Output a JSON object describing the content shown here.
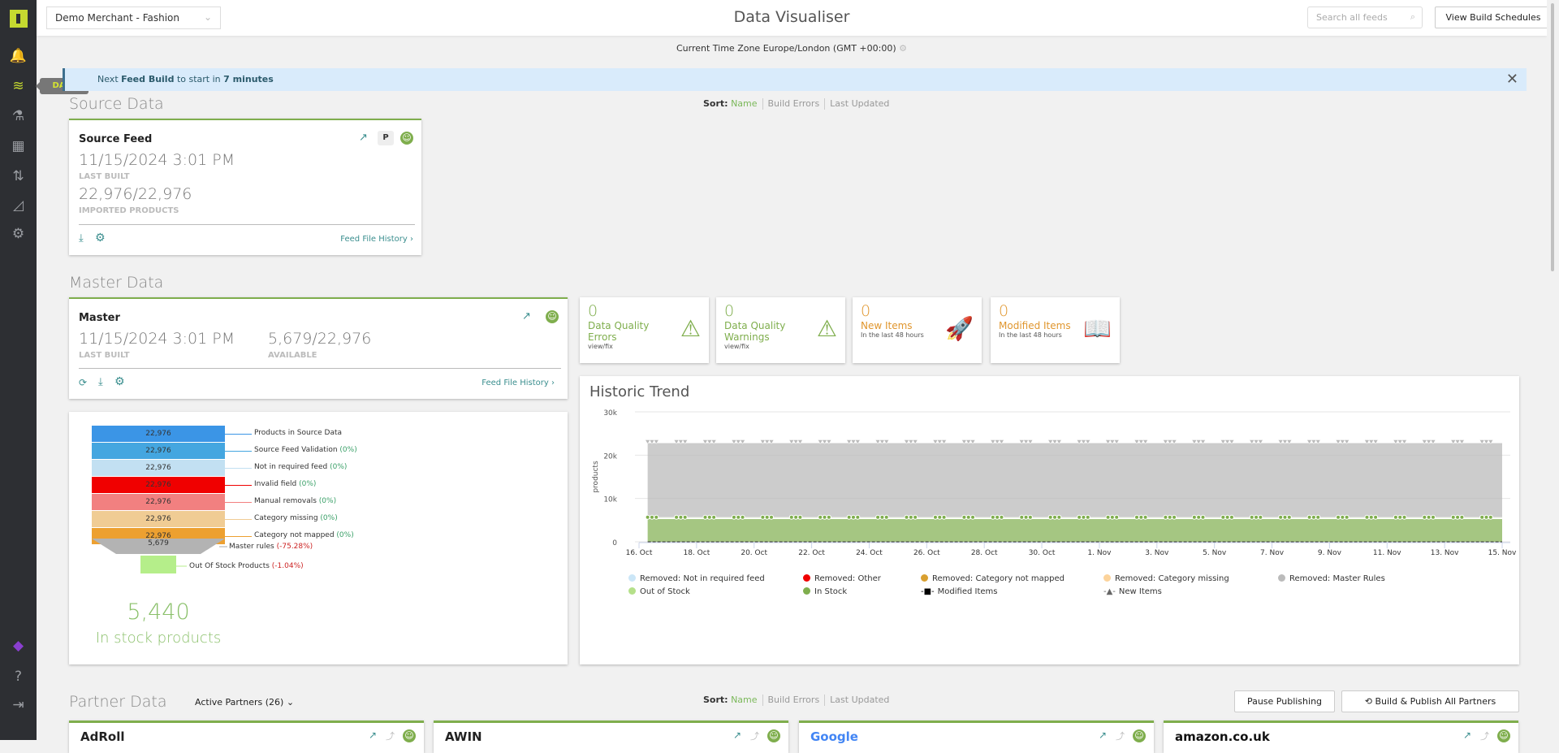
{
  "sidebar": {
    "tooltip": "DATA",
    "items": [
      {
        "icon": "bell-icon",
        "g": "🔔"
      },
      {
        "icon": "layers-icon",
        "g": "≋"
      },
      {
        "icon": "flask-icon",
        "g": "⚗"
      },
      {
        "icon": "store-icon",
        "g": "▦"
      },
      {
        "icon": "transfer-arrows-icon",
        "g": "⇅"
      },
      {
        "icon": "area-chart-icon",
        "g": "◿"
      },
      {
        "icon": "gear-icon",
        "g": "⚙"
      }
    ],
    "bottom": [
      {
        "icon": "cube-icon",
        "g": "◆"
      },
      {
        "icon": "help-icon",
        "g": "?"
      },
      {
        "icon": "logout-icon",
        "g": "⇥"
      }
    ]
  },
  "header": {
    "merchant": "Demo Merchant - Fashion",
    "title": "Data Visualiser",
    "search_placeholder": "Search all feeds",
    "view_schedules": "View Build Schedules"
  },
  "timezone": "Current Time Zone Europe/London (GMT +00:00)",
  "banner": {
    "pre": "Next ",
    "bold1": "Feed Build",
    "mid": " to start in ",
    "bold2": "7 minutes"
  },
  "sort": {
    "label": "Sort:",
    "options": [
      "Name",
      "Build Errors",
      "Last Updated"
    ]
  },
  "source": {
    "heading": "Source Data",
    "card": {
      "name": "Source Feed",
      "last_built": "11/15/2024 3:01 PM",
      "last_built_label": "LAST BUILT",
      "imported": "22,976/22,976",
      "imported_label": "IMPORTED PRODUCTS",
      "badge": "P",
      "history": "Feed File History"
    }
  },
  "master": {
    "heading": "Master Data",
    "card": {
      "name": "Master",
      "last_built": "11/15/2024 3:01 PM",
      "last_built_label": "LAST BUILT",
      "available": "5,679/22,976",
      "available_label": "AVAILABLE",
      "history": "Feed File History"
    }
  },
  "stats": [
    {
      "value": "0",
      "title": "Data Quality Errors",
      "sub": "view/fix",
      "color": "#7fae4d"
    },
    {
      "value": "0",
      "title": "Data Quality Warnings",
      "sub": "view/fix",
      "color": "#7fae4d"
    },
    {
      "value": "0",
      "title": "New Items",
      "sub": "In the last 48 hours",
      "color": "#e0962e"
    },
    {
      "value": "0",
      "title": "Modified Items",
      "sub": "In the last 48 hours",
      "color": "#e0962e"
    }
  ],
  "funnel": {
    "rows": [
      {
        "value": "22,976",
        "label": "Products in Source Data",
        "pct": "",
        "color": "#3b95e6"
      },
      {
        "value": "22,976",
        "label": "Source Feed Validation",
        "pct": "(0%)",
        "color": "#44a6e0"
      },
      {
        "value": "22,976",
        "label": "Not in required feed",
        "pct": "(0%)",
        "color": "#c2e0f2"
      },
      {
        "value": "22,976",
        "label": "Invalid field",
        "pct": "(0%)",
        "color": "#f00000"
      },
      {
        "value": "22,976",
        "label": "Manual removals",
        "pct": "(0%)",
        "color": "#f28080"
      },
      {
        "value": "22,976",
        "label": "Category missing",
        "pct": "(0%)",
        "color": "#f0cc94"
      },
      {
        "value": "22,976",
        "label": "Category not mapped",
        "pct": "(0%)",
        "color": "#eda030"
      }
    ],
    "master_rules": {
      "value": "5,679",
      "label": "Master rules",
      "pct": "(-75.28%)"
    },
    "out_of_stock": {
      "label": "Out Of Stock Products",
      "pct": "(-1.04%)"
    },
    "in_stock": {
      "value": "5,440",
      "label": "In stock products"
    }
  },
  "chart_data": {
    "type": "area",
    "title": "Historic Trend",
    "ylabel": "products",
    "ylim": [
      0,
      30000
    ],
    "yticks": [
      "0",
      "10k",
      "20k",
      "30k"
    ],
    "xticks": [
      "16. Oct",
      "18. Oct",
      "20. Oct",
      "22. Oct",
      "24. Oct",
      "26. Oct",
      "28. Oct",
      "30. Oct",
      "1. Nov",
      "3. Nov",
      "5. Nov",
      "7. Nov",
      "9. Nov",
      "11. Nov",
      "13. Nov",
      "15. Nov"
    ],
    "x_range": [
      "2024-10-16",
      "2024-11-15"
    ],
    "stacked": true,
    "series": [
      {
        "name": "In Stock",
        "color": "#7fae4d",
        "value": 5440
      },
      {
        "name": "Out of Stock",
        "color": "#b5e08a",
        "value": 239
      },
      {
        "name": "Removed: Master Rules",
        "color": "#bbbbbb",
        "value": 17297
      },
      {
        "name": "Removed: Category missing",
        "color": "#fcd39b",
        "value": 0
      },
      {
        "name": "Removed: Category not mapped",
        "color": "#d9a030",
        "value": 0
      },
      {
        "name": "Removed: Other",
        "color": "#f00000",
        "value": 0
      },
      {
        "name": "Removed: Not in required feed",
        "color": "#cbe6f7",
        "value": 0
      },
      {
        "name": "Modified Items",
        "color": "#000000",
        "value": 0
      },
      {
        "name": "New Items",
        "color": "#666666",
        "value": 0
      }
    ],
    "legend": [
      [
        "Removed: Not in required feed",
        "#cbe6f7"
      ],
      [
        "Removed: Other",
        "#f00000"
      ],
      [
        "Removed: Category not mapped",
        "#d9a030"
      ],
      [
        "Removed: Category missing",
        "#fcd39b"
      ],
      [
        "Removed: Master Rules",
        "#bbbbbb"
      ],
      [
        "Out of Stock",
        "#b5e08a"
      ],
      [
        "In Stock",
        "#7fae4d"
      ],
      [
        "Modified Items",
        "#000000"
      ],
      [
        "New Items",
        "#666666"
      ]
    ],
    "legend_placement": "bottom",
    "grid": true
  },
  "partners": {
    "heading": "Partner Data",
    "filter": "Active Partners (26)",
    "pause": "Pause Publishing",
    "build_all": "Build & Publish All Partners",
    "cards": [
      "AdRoll",
      "AWIN",
      "Google",
      "amazon.co.uk"
    ]
  }
}
